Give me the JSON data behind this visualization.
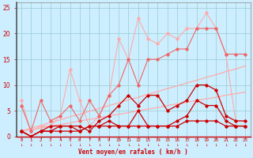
{
  "x": [
    0,
    1,
    2,
    3,
    4,
    5,
    6,
    7,
    8,
    9,
    10,
    11,
    12,
    13,
    14,
    15,
    16,
    17,
    18,
    19,
    20,
    21,
    22,
    23
  ],
  "line_light_zigzag": [
    7,
    1,
    2,
    2,
    4,
    13,
    7,
    2,
    4,
    8,
    19,
    15,
    23,
    19,
    18,
    20,
    19,
    21,
    21,
    24,
    21,
    16,
    3,
    3
  ],
  "line_mid_zigzag": [
    6,
    1,
    7,
    3,
    4,
    6,
    3,
    7,
    4,
    8,
    10,
    15,
    10,
    15,
    15,
    16,
    17,
    17,
    21,
    21,
    21,
    16,
    16,
    16
  ],
  "line_trend1": [
    1,
    1.3,
    1.6,
    2.0,
    2.3,
    2.6,
    3.0,
    3.3,
    3.6,
    4.0,
    4.3,
    4.6,
    5.0,
    5.3,
    5.6,
    6.0,
    6.3,
    6.6,
    7.0,
    7.3,
    7.6,
    8.0,
    8.3,
    8.6
  ],
  "line_trend2": [
    1,
    1.6,
    2.1,
    2.7,
    3.2,
    3.8,
    4.3,
    4.9,
    5.4,
    6.0,
    6.5,
    7.1,
    7.6,
    8.2,
    8.7,
    9.3,
    9.8,
    10.4,
    10.9,
    11.5,
    12.0,
    12.6,
    13.1,
    13.7
  ],
  "line_dark1": [
    1,
    0,
    1,
    2,
    2,
    2,
    2,
    1,
    3,
    4,
    6,
    8,
    6,
    8,
    8,
    5,
    6,
    7,
    10,
    10,
    9,
    4,
    3,
    3
  ],
  "line_dark2": [
    1,
    0,
    1,
    1,
    2,
    2,
    1,
    2,
    2,
    3,
    2,
    2,
    5,
    2,
    2,
    2,
    3,
    4,
    7,
    6,
    6,
    3,
    2,
    2
  ],
  "line_flat": [
    1,
    0,
    1,
    1,
    1,
    1,
    1,
    2,
    2,
    2,
    2,
    2,
    2,
    2,
    2,
    2,
    2,
    3,
    3,
    3,
    3,
    2,
    2,
    2
  ],
  "bg_color": "#cceeff",
  "grid_color": "#99cccc",
  "line_color_dark": "#cc0000",
  "line_color_mid": "#ee6666",
  "line_color_light": "#ffaaaa",
  "xlabel": "Vent moyen/en rafales ( km/h )",
  "ylim": [
    0,
    26
  ],
  "xlim": [
    -0.5,
    23.5
  ],
  "yticks": [
    0,
    5,
    10,
    15,
    20,
    25
  ],
  "xticks": [
    0,
    1,
    2,
    3,
    4,
    5,
    6,
    7,
    8,
    9,
    10,
    11,
    12,
    13,
    14,
    15,
    16,
    17,
    18,
    19,
    20,
    21,
    22,
    23
  ]
}
